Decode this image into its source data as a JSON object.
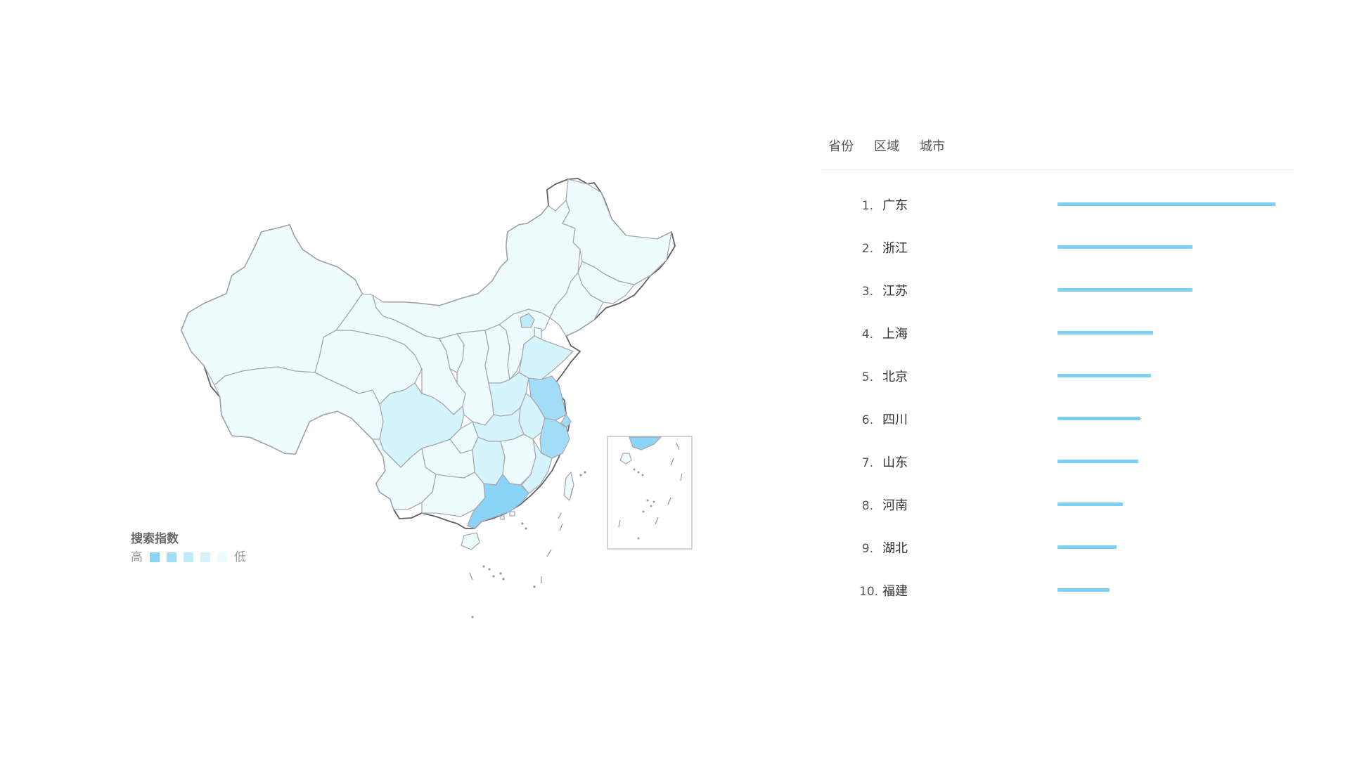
{
  "tabs": [
    "省份",
    "区域",
    "城市"
  ],
  "legend": {
    "title": "搜索指数",
    "high_label": "高",
    "low_label": "低",
    "colors": [
      "#8ad4f7",
      "#a2ddf7",
      "#bfeaf9",
      "#d6f4fb",
      "#eefcfd"
    ]
  },
  "ranking": [
    {
      "rank": "1.",
      "name": "广东",
      "value": 1.0
    },
    {
      "rank": "2.",
      "name": "浙江",
      "value": 0.62
    },
    {
      "rank": "3.",
      "name": "江苏",
      "value": 0.62
    },
    {
      "rank": "4.",
      "name": "上海",
      "value": 0.44
    },
    {
      "rank": "5.",
      "name": "北京",
      "value": 0.43
    },
    {
      "rank": "6.",
      "name": "四川",
      "value": 0.38
    },
    {
      "rank": "7.",
      "name": "山东",
      "value": 0.37
    },
    {
      "rank": "8.",
      "name": "河南",
      "value": 0.3
    },
    {
      "rank": "9.",
      "name": "湖北",
      "value": 0.27
    },
    {
      "rank": "10.",
      "name": "福建",
      "value": 0.24
    }
  ],
  "map": {
    "highlighted_regions": [
      {
        "name": "广东",
        "level": "high"
      },
      {
        "name": "浙江",
        "level": "high"
      },
      {
        "name": "江苏",
        "level": "high"
      }
    ]
  },
  "colors": {
    "bar": "#7ecff5",
    "base_fill": "#eefcfd"
  }
}
